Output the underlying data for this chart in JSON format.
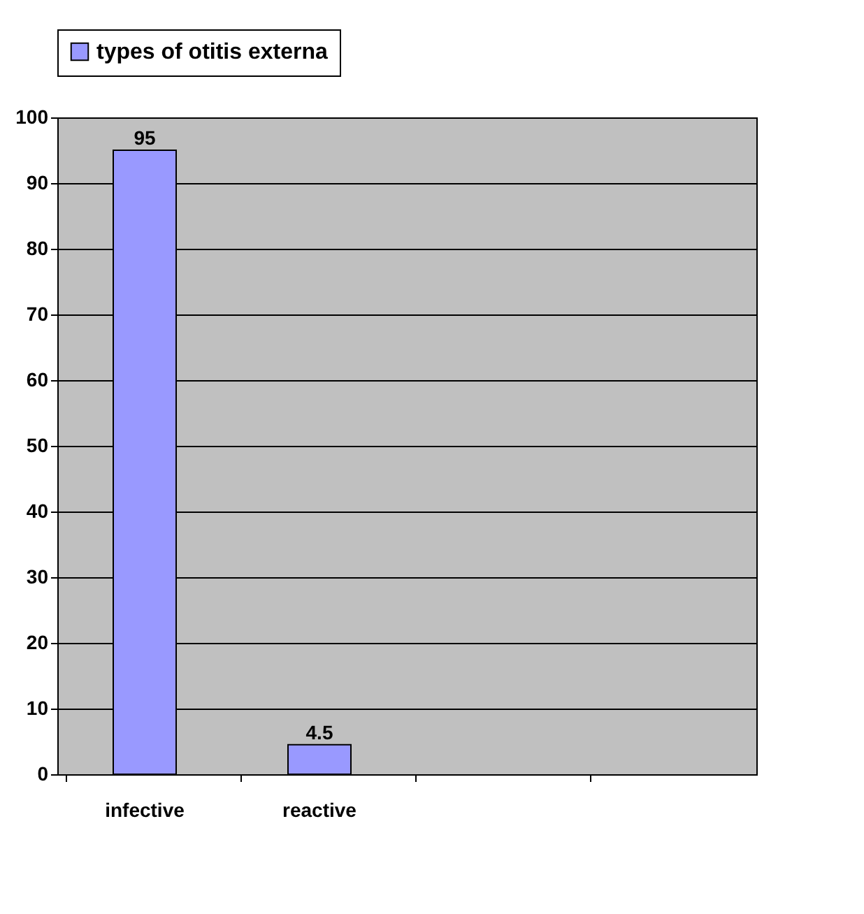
{
  "chart_data": {
    "type": "bar",
    "categories": [
      "infective",
      "reactive",
      null,
      null
    ],
    "series": [
      {
        "name": "types of otitis externa",
        "color": "#9999ff",
        "values": [
          95,
          4.5,
          null,
          null
        ]
      }
    ],
    "ylim": [
      0,
      100
    ],
    "yticks": [
      0,
      10,
      20,
      30,
      40,
      50,
      60,
      70,
      80,
      90,
      100
    ],
    "grid": "y",
    "legend": "top",
    "data_labels": true
  }
}
